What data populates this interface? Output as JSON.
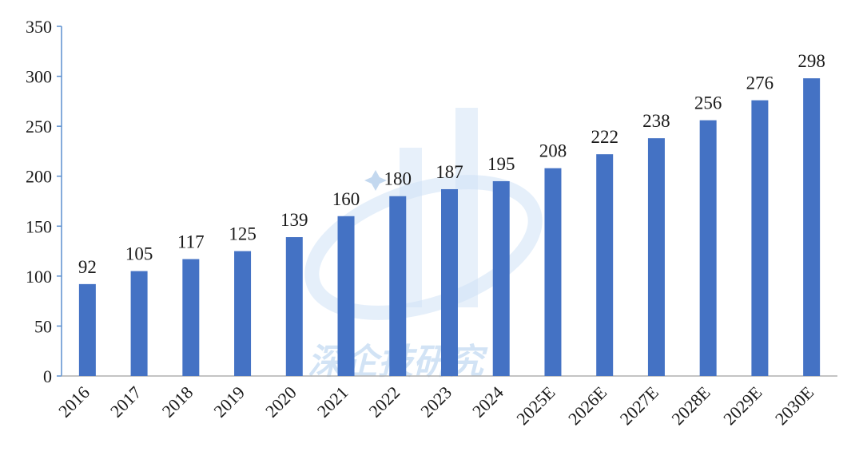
{
  "chart_data": {
    "type": "bar",
    "title": "",
    "xlabel": "",
    "ylabel": "",
    "categories": [
      "2016",
      "2017",
      "2018",
      "2019",
      "2020",
      "2021",
      "2022",
      "2023",
      "2024",
      "2025E",
      "2026E",
      "2027E",
      "2028E",
      "2029E",
      "2030E"
    ],
    "values": [
      92,
      105,
      117,
      125,
      139,
      160,
      180,
      187,
      195,
      208,
      222,
      238,
      256,
      276,
      298
    ],
    "ylim": [
      0,
      350
    ],
    "yticks": [
      0,
      50,
      100,
      150,
      200,
      250,
      300,
      350
    ],
    "grid": false,
    "legend": "none",
    "bar_color": "#4472c4",
    "axis_color": "#5b8fcf"
  },
  "watermark": {
    "text": "深企技研究",
    "color": "#9cc3ea"
  }
}
